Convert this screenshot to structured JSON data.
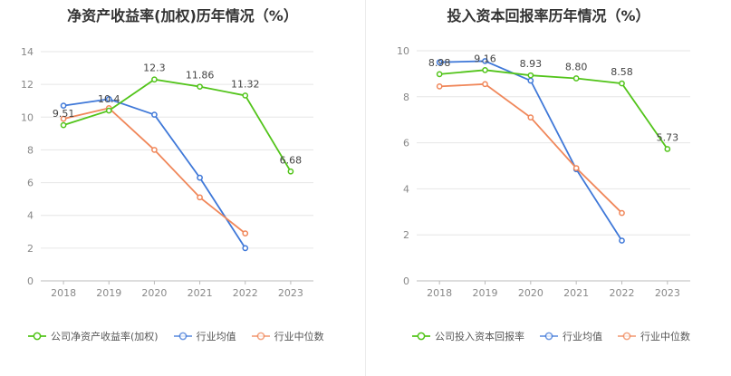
{
  "chart_data": [
    {
      "type": "line",
      "title": "净资产收益率(加权)历年情况（%）",
      "categories": [
        "2018",
        "2019",
        "2020",
        "2021",
        "2022",
        "2023"
      ],
      "yticks": [
        "0",
        "2",
        "4",
        "6",
        "8",
        "10",
        "12",
        "14"
      ],
      "ylim": [
        0,
        14
      ],
      "grid": true,
      "legend_position": "bottom",
      "series": [
        {
          "name": "公司净资产收益率(加权)",
          "color": "#52c41a",
          "values": [
            9.51,
            10.4,
            12.3,
            11.86,
            11.32,
            6.68
          ],
          "labels": [
            "9.51",
            "10.4",
            "12.3",
            "11.86",
            "11.32",
            "6.68"
          ]
        },
        {
          "name": "行业均值",
          "color": "#3f78d8",
          "values": [
            10.7,
            11.1,
            10.15,
            6.3,
            2.0,
            null
          ]
        },
        {
          "name": "行业中位数",
          "color": "#f0875a",
          "values": [
            9.9,
            10.55,
            8.0,
            5.1,
            2.9,
            null
          ]
        }
      ]
    },
    {
      "type": "line",
      "title": "投入资本回报率历年情况（%）",
      "categories": [
        "2018",
        "2019",
        "2020",
        "2021",
        "2022",
        "2023"
      ],
      "yticks": [
        "0",
        "2",
        "4",
        "6",
        "8",
        "10"
      ],
      "ylim": [
        0,
        10
      ],
      "grid": true,
      "legend_position": "bottom",
      "series": [
        {
          "name": "公司投入资本回报率",
          "color": "#52c41a",
          "values": [
            8.98,
            9.16,
            8.93,
            8.8,
            8.58,
            5.73
          ],
          "labels": [
            "8.98",
            "9.16",
            "8.93",
            "8.80",
            "8.58",
            "5.73"
          ]
        },
        {
          "name": "行业均值",
          "color": "#3f78d8",
          "values": [
            9.5,
            9.55,
            8.7,
            4.85,
            1.75,
            null
          ]
        },
        {
          "name": "行业中位数",
          "color": "#f0875a",
          "values": [
            8.45,
            8.55,
            7.1,
            4.9,
            2.95,
            null
          ]
        }
      ]
    }
  ]
}
